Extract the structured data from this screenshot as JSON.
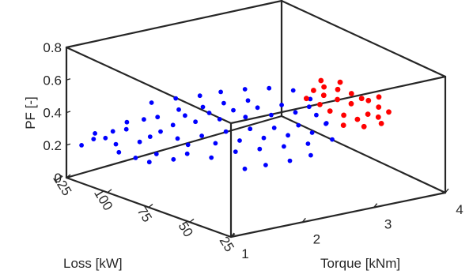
{
  "chart_data": {
    "type": "scatter",
    "projection": "3d",
    "title": "",
    "xlabel": "Torque [kNm]",
    "ylabel": "Loss [kW]",
    "zlabel": "PF [-]",
    "xlim": [
      1,
      4
    ],
    "ylim": [
      25,
      125
    ],
    "zlim": [
      0,
      0.8
    ],
    "x_ticks": [
      "1",
      "2",
      "3",
      "4"
    ],
    "y_ticks": [
      "25",
      "50",
      "75",
      "100",
      "125"
    ],
    "z_ticks": [
      "0",
      "0.2",
      "0.4",
      "0.6",
      "0.8"
    ],
    "grid": false,
    "legend": "none",
    "series": [
      {
        "color": "#0000ff",
        "points": [
          [
            1.05,
            118,
            0.22
          ],
          [
            1.15,
            115,
            0.26
          ],
          [
            1.2,
            110,
            0.28
          ],
          [
            1.1,
            112,
            0.31
          ],
          [
            1.3,
            108,
            0.24
          ],
          [
            1.35,
            112,
            0.3
          ],
          [
            1.25,
            104,
            0.21
          ],
          [
            1.4,
            106,
            0.33
          ],
          [
            1.45,
            100,
            0.27
          ],
          [
            1.5,
            110,
            0.35
          ],
          [
            1.55,
            98,
            0.3
          ],
          [
            1.6,
            104,
            0.38
          ],
          [
            1.5,
            92,
            0.22
          ],
          [
            1.65,
            96,
            0.33
          ],
          [
            1.7,
            100,
            0.4
          ],
          [
            1.75,
            90,
            0.3
          ],
          [
            1.8,
            95,
            0.36
          ],
          [
            1.85,
            88,
            0.26
          ],
          [
            1.9,
            92,
            0.42
          ],
          [
            1.95,
            84,
            0.32
          ],
          [
            2.0,
            90,
            0.38
          ],
          [
            2.05,
            80,
            0.28
          ],
          [
            2.1,
            86,
            0.44
          ],
          [
            2.15,
            78,
            0.35
          ],
          [
            2.2,
            84,
            0.4
          ],
          [
            2.25,
            74,
            0.3
          ],
          [
            2.3,
            80,
            0.46
          ],
          [
            2.35,
            72,
            0.37
          ],
          [
            2.4,
            77,
            0.42
          ],
          [
            2.45,
            68,
            0.32
          ],
          [
            2.5,
            74,
            0.48
          ],
          [
            2.55,
            66,
            0.38
          ],
          [
            2.6,
            70,
            0.44
          ],
          [
            2.65,
            62,
            0.34
          ],
          [
            2.7,
            68,
            0.5
          ],
          [
            2.75,
            60,
            0.4
          ],
          [
            2.8,
            64,
            0.46
          ],
          [
            2.85,
            56,
            0.36
          ],
          [
            2.9,
            60,
            0.5
          ],
          [
            2.95,
            52,
            0.42
          ],
          [
            1.6,
            86,
            0.2
          ],
          [
            1.7,
            82,
            0.24
          ],
          [
            1.9,
            76,
            0.22
          ],
          [
            2.1,
            70,
            0.26
          ],
          [
            2.3,
            64,
            0.28
          ],
          [
            2.5,
            58,
            0.3
          ],
          [
            2.7,
            52,
            0.32
          ],
          [
            2.9,
            46,
            0.35
          ],
          [
            1.8,
            108,
            0.45
          ],
          [
            2.0,
            102,
            0.48
          ],
          [
            2.2,
            96,
            0.5
          ],
          [
            2.4,
            92,
            0.52
          ],
          [
            2.6,
            86,
            0.54
          ],
          [
            2.8,
            80,
            0.55
          ],
          [
            3.0,
            74,
            0.54
          ],
          [
            3.1,
            68,
            0.5
          ],
          [
            2.0,
            60,
            0.2
          ],
          [
            2.2,
            56,
            0.22
          ],
          [
            2.4,
            50,
            0.25
          ],
          [
            1.4,
            92,
            0.18
          ],
          [
            1.3,
            96,
            0.2
          ],
          [
            2.6,
            46,
            0.28
          ],
          [
            3.0,
            60,
            0.44
          ],
          [
            3.05,
            56,
            0.4
          ],
          [
            2.35,
            88,
            0.47
          ],
          [
            2.55,
            82,
            0.49
          ],
          [
            2.15,
            92,
            0.45
          ],
          [
            1.95,
            98,
            0.43
          ]
        ]
      },
      {
        "color": "#ff0000",
        "points": [
          [
            3.05,
            60,
            0.5
          ],
          [
            3.1,
            56,
            0.47
          ],
          [
            3.15,
            62,
            0.54
          ],
          [
            3.2,
            52,
            0.45
          ],
          [
            3.25,
            58,
            0.52
          ],
          [
            3.3,
            48,
            0.43
          ],
          [
            3.35,
            54,
            0.5
          ],
          [
            3.4,
            46,
            0.46
          ],
          [
            3.45,
            52,
            0.53
          ],
          [
            3.5,
            44,
            0.44
          ],
          [
            3.1,
            66,
            0.56
          ],
          [
            3.2,
            64,
            0.58
          ],
          [
            3.3,
            60,
            0.57
          ],
          [
            3.4,
            56,
            0.55
          ],
          [
            3.5,
            50,
            0.52
          ],
          [
            3.55,
            46,
            0.49
          ],
          [
            3.6,
            42,
            0.47
          ],
          [
            3.0,
            66,
            0.52
          ],
          [
            3.15,
            50,
            0.4
          ],
          [
            3.3,
            44,
            0.4
          ],
          [
            3.45,
            40,
            0.42
          ],
          [
            3.6,
            48,
            0.54
          ],
          [
            3.25,
            68,
            0.6
          ],
          [
            3.38,
            62,
            0.6
          ]
        ]
      }
    ]
  }
}
